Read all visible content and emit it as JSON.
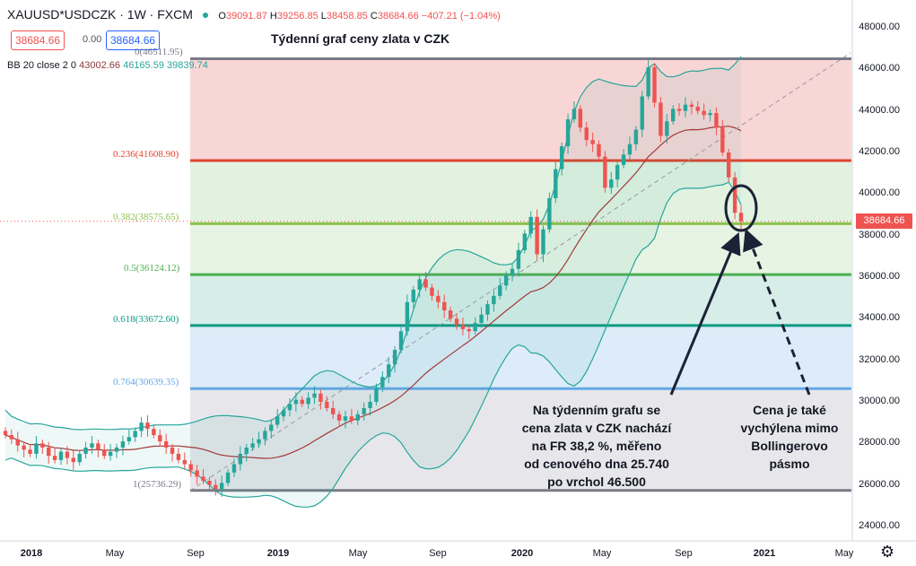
{
  "header": {
    "symbol": "XAUUSD*USDCZK · 1W · FXCM",
    "open": "39091.87",
    "high": "39256.85",
    "low": "38458.85",
    "close": "38684.66",
    "change": "−407.21 (−1.04%)"
  },
  "price_boxes": {
    "bid": "38684.66",
    "spread": "0.00",
    "ask": "38684.66"
  },
  "indicator": {
    "label": "BB 20 close 2 0",
    "middle": "43002.66",
    "upper": "46165.59",
    "lower": "39839.74"
  },
  "colors": {
    "up": "#26a69a",
    "down": "#ef5350",
    "bb_band": "#26a69a",
    "bb_basis": "#a13a3a",
    "fib_0_fill": "#f9d6d6",
    "fib_0236_fill": "#e2f2e1",
    "fib_0382_fill": "#e7f4e3",
    "fib_05_fill": "#d7ede8",
    "fib_0618_fill": "#ddecf8",
    "fib_0764_fill": "#e7e7eb",
    "annotation": "#1b2235"
  },
  "chart_data": {
    "type": "candlestick",
    "title": "Týdenní graf ceny zlata v CZK",
    "x_ticks": [
      "2018",
      "May",
      "Sep",
      "2019",
      "May",
      "Sep",
      "2020",
      "May",
      "Sep",
      "2021",
      "May"
    ],
    "y_ticks": [
      "24000.00",
      "26000.00",
      "28000.00",
      "30000.00",
      "32000.00",
      "34000.00",
      "36000.00",
      "38000.00",
      "40000.00",
      "42000.00",
      "44000.00",
      "46000.00",
      "48000.00"
    ],
    "ylim": [
      23200,
      49200
    ],
    "last_price": "38684.66",
    "fib_levels": [
      {
        "ratio": 0,
        "label": "0(46511.95)",
        "price": 46511.95,
        "color": "#787b86"
      },
      {
        "ratio": 0.236,
        "label": "0.236(41608.90)",
        "price": 41608.9,
        "color": "#e0442f"
      },
      {
        "ratio": 0.382,
        "label": "0.382(38575.65)",
        "price": 38575.65,
        "color": "#8bc34a"
      },
      {
        "ratio": 0.5,
        "label": "0.5(36124.12)",
        "price": 36124.12,
        "color": "#4caf50"
      },
      {
        "ratio": 0.618,
        "label": "0.618(33672.60)",
        "price": 33672.6,
        "color": "#089981"
      },
      {
        "ratio": 0.764,
        "label": "0.764(30639.35)",
        "price": 30639.35,
        "color": "#64a8e8"
      },
      {
        "ratio": 1,
        "label": "1(25736.29)",
        "price": 25736.29,
        "color": "#787b86"
      }
    ],
    "annotations": [
      {
        "lines": [
          "Na týdenním grafu se",
          "cena zlata v CZK nachází",
          "na FR 38,2 %, měřeno",
          "od cenového dna 25.740",
          "po vrchol 46.500"
        ]
      },
      {
        "lines": [
          "Cena je také",
          "vychýlena mimo",
          "Bollingerovo",
          "pásmo"
        ]
      }
    ],
    "weekly_closes_approx": [
      28400,
      28200,
      27900,
      27700,
      27500,
      28000,
      27800,
      27400,
      27200,
      27600,
      27300,
      27100,
      27500,
      27800,
      28000,
      27700,
      27400,
      27600,
      27800,
      28100,
      28300,
      28600,
      29000,
      28700,
      28400,
      28100,
      27800,
      27500,
      27200,
      27000,
      26700,
      26400,
      26200,
      26000,
      25800,
      26100,
      26600,
      27000,
      27500,
      27800,
      28000,
      28200,
      28600,
      28900,
      29300,
      29600,
      29900,
      30100,
      29900,
      30200,
      30400,
      30000,
      29700,
      29400,
      29100,
      29300,
      29100,
      29400,
      29700,
      30000,
      30700,
      31200,
      31800,
      32500,
      33400,
      34800,
      35400,
      35900,
      35500,
      35100,
      34800,
      34400,
      34000,
      33700,
      33500,
      33400,
      33800,
      34200,
      34700,
      35100,
      35600,
      36100,
      36400,
      37300,
      38100,
      38900,
      37100,
      38300,
      39800,
      41200,
      42300,
      43600,
      44100,
      43200,
      42600,
      42400,
      41800,
      40300,
      40700,
      41400,
      41900,
      42400,
      43100,
      44700,
      46100,
      44400,
      42800,
      43500,
      44100,
      44000,
      44300,
      44200,
      44000,
      43800,
      43900,
      43200,
      42000,
      40800,
      39100,
      38685
    ]
  }
}
